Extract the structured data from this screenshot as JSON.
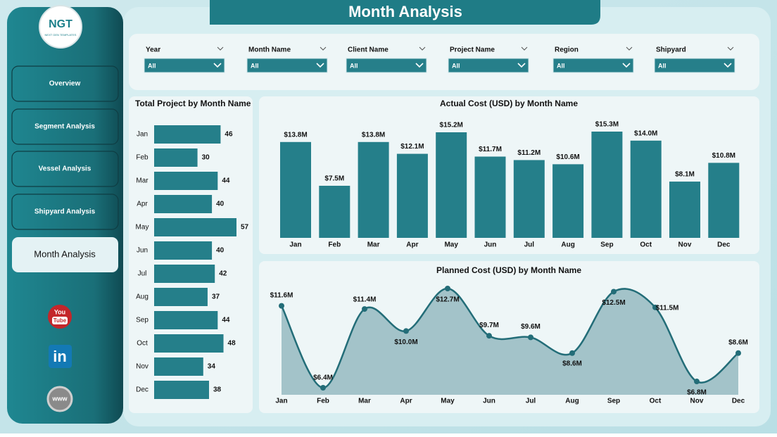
{
  "header": {
    "title": "Month Analysis"
  },
  "logo": {
    "text": "NGT",
    "tagline": "NEXT GEN TEMPLATES"
  },
  "nav": [
    "Overview",
    "Segment Analysis",
    "Vessel Analysis",
    "Shipyard Analysis",
    "Month Analysis"
  ],
  "nav_active": 4,
  "social": {
    "youtube_top": "You",
    "youtube_bottom": "Tube",
    "linkedin": "in",
    "web": "www"
  },
  "filters": [
    {
      "label": "Year",
      "value": "All"
    },
    {
      "label": "Month Name",
      "value": "All"
    },
    {
      "label": "Client Name",
      "value": "All"
    },
    {
      "label": "Project Name",
      "value": "All"
    },
    {
      "label": "Region",
      "value": "All"
    },
    {
      "label": "Shipyard",
      "value": "All"
    }
  ],
  "chart_data": [
    {
      "type": "hbar",
      "title": "Total Project by Month Name",
      "categories": [
        "Jan",
        "Feb",
        "Mar",
        "Apr",
        "May",
        "Jun",
        "Jul",
        "Aug",
        "Sep",
        "Oct",
        "Nov",
        "Dec"
      ],
      "values": [
        46,
        30,
        44,
        40,
        57,
        40,
        42,
        37,
        44,
        48,
        34,
        38
      ],
      "color": "#257f8a"
    },
    {
      "type": "bar",
      "title": "Actual Cost (USD) by Month Name",
      "categories": [
        "Jan",
        "Feb",
        "Mar",
        "Apr",
        "May",
        "Jun",
        "Jul",
        "Aug",
        "Sep",
        "Oct",
        "Nov",
        "Dec"
      ],
      "values": [
        13.8,
        7.5,
        13.8,
        12.1,
        15.2,
        11.7,
        11.2,
        10.6,
        15.3,
        14.0,
        8.1,
        10.8
      ],
      "value_labels": [
        "$13.8M",
        "$7.5M",
        "$13.8M",
        "$12.1M",
        "$15.2M",
        "$11.7M",
        "$11.2M",
        "$10.6M",
        "$15.3M",
        "$14.0M",
        "$8.1M",
        "$10.8M"
      ],
      "color": "#257f8a"
    },
    {
      "type": "area",
      "title": "Planned Cost (USD) by Month Name",
      "categories": [
        "Jan",
        "Feb",
        "Mar",
        "Apr",
        "May",
        "Jun",
        "Jul",
        "Aug",
        "Sep",
        "Oct",
        "Nov",
        "Dec"
      ],
      "values": [
        11.6,
        6.4,
        11.4,
        10.0,
        12.7,
        9.7,
        9.6,
        8.6,
        12.5,
        11.5,
        6.8,
        8.6
      ],
      "value_labels": [
        "$11.6M",
        "$6.4M",
        "$11.4M",
        "$10.0M",
        "$12.7M",
        "$9.7M",
        "$9.6M",
        "$8.6M",
        "$12.5M",
        "$11.5M",
        "$6.8M",
        "$8.6M"
      ],
      "color": "#236d78",
      "fill": "#a3c3c9"
    }
  ]
}
